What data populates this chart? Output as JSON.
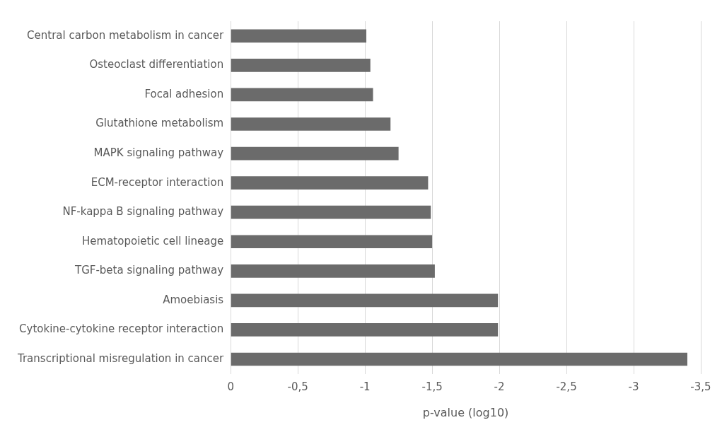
{
  "chart_data": {
    "type": "bar",
    "orientation": "horizontal",
    "xlabel": "p-value (log10)",
    "categories": [
      "Central carbon metabolism in cancer",
      "Osteoclast differentiation",
      "Focal adhesion",
      "Glutathione metabolism",
      "MAPK signaling pathway",
      "ECM-receptor interaction",
      "NF-kappa B signaling pathway",
      "Hematopoietic cell lineage",
      "TGF-beta signaling pathway",
      "Amoebiasis",
      "Cytokine-cytokine receptor interaction",
      "Transcriptional misregulation in cancer"
    ],
    "values": [
      -1.01,
      -1.04,
      -1.06,
      -1.19,
      -1.25,
      -1.47,
      -1.49,
      -1.5,
      -1.52,
      -1.99,
      -1.99,
      -3.4
    ],
    "color": "#6b6b6b",
    "xlim": [
      0,
      -3.5
    ],
    "xticks": [
      0,
      {
        "value": -0.5,
        "label": "-0,5"
      },
      -1,
      {
        "value": -1.5,
        "label": "-1,5"
      },
      -2,
      {
        "value": -2.5,
        "label": "-2,5"
      },
      -3,
      {
        "value": -3.5,
        "label": "-3,5"
      }
    ],
    "grid": "x",
    "legend": false
  }
}
